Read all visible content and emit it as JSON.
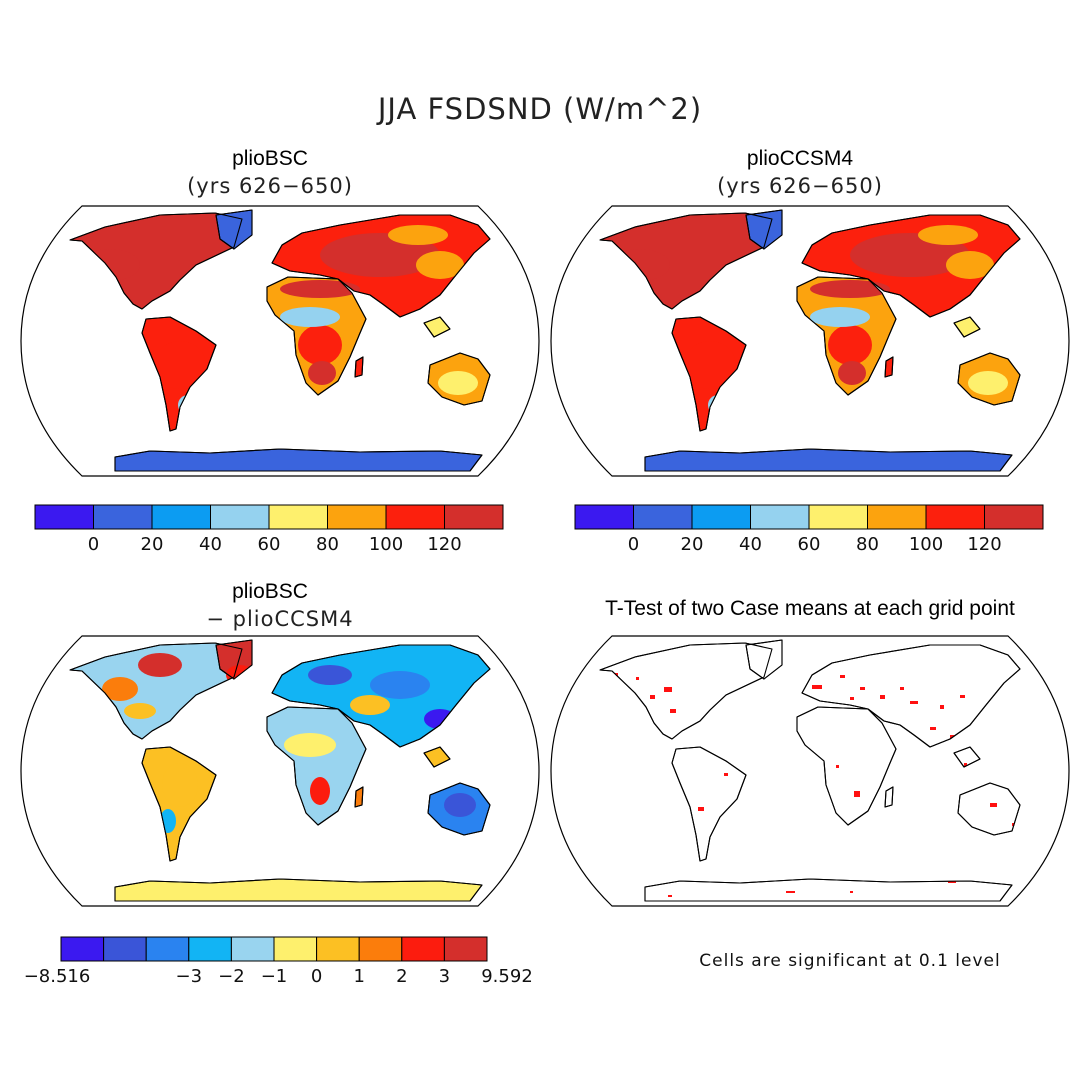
{
  "title": "JJA FSDSND (W/m^2)",
  "panels": [
    {
      "title": "plioBSC",
      "subtitle": "(yrs 626−650)"
    },
    {
      "title": "plioCCSM4",
      "subtitle": "(yrs 626−650)"
    },
    {
      "title": "plioBSC",
      "subtitle": "− plioCCSM4"
    },
    {
      "title": "T-Test of two Case means at each grid point",
      "subtitle": ""
    }
  ],
  "colorbars": {
    "absolute": {
      "colors": [
        "#3b19f0",
        "#3a64dd",
        "#0c9cf2",
        "#95d2ef",
        "#fef06d",
        "#fca30e",
        "#fc200d",
        "#d42f2c"
      ],
      "labels": [
        "0",
        "20",
        "40",
        "60",
        "80",
        "100",
        "120"
      ]
    },
    "difference": {
      "colors": [
        "#3b19f0",
        "#3a55d8",
        "#2a83f0",
        "#12b4f4",
        "#99d4ef",
        "#fef06d",
        "#fcc023",
        "#fb7d0c",
        "#fc1c0e",
        "#d42f2c"
      ],
      "labels": [
        "−8.516",
        "−3",
        "−2",
        "−1",
        "0",
        "1",
        "2",
        "3",
        "9.592"
      ]
    }
  },
  "significance_note": "Cells are significant at 0.1 level"
}
